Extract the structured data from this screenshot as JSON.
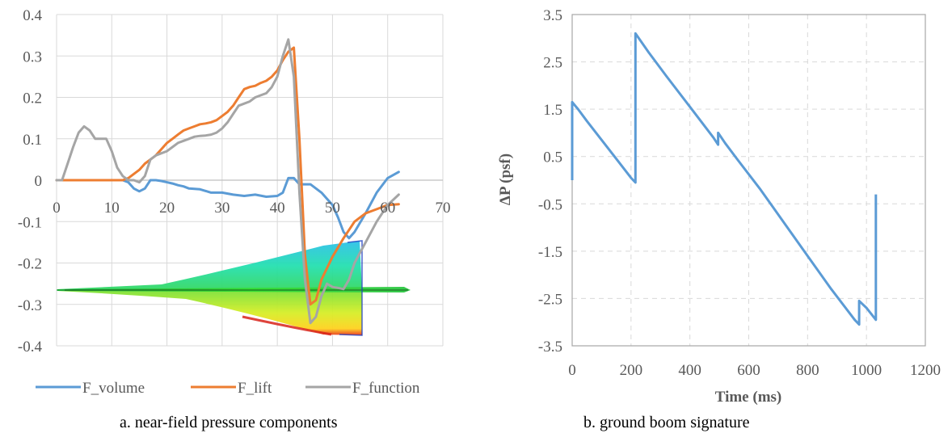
{
  "captions": {
    "a": "a. near-field pressure components",
    "b": "b. ground boom signature"
  },
  "chart_data": [
    {
      "id": "a",
      "type": "line",
      "title": "",
      "xlabel": "",
      "ylabel": "",
      "xlim": [
        0,
        70
      ],
      "ylim": [
        -0.4,
        0.4
      ],
      "xticks": [
        0,
        10,
        20,
        30,
        40,
        50,
        60,
        70
      ],
      "yticks": [
        0.4,
        0.3,
        0.2,
        0.1,
        0,
        -0.1,
        -0.2,
        -0.3,
        -0.4
      ],
      "ytick_labels": [
        "0.4",
        "0.3",
        "0.2",
        "0.1",
        "0",
        "-0.1",
        "-0.2",
        "-0.3",
        "-0.4"
      ],
      "grid": "vertical and horizontal",
      "legend_position": "bottom",
      "inset": "aircraft pressure contour planform",
      "series": [
        {
          "name": "F_volume",
          "color": "#5b9bd5",
          "points": [
            [
              0,
              0
            ],
            [
              1,
              0
            ],
            [
              2,
              0
            ],
            [
              4,
              0
            ],
            [
              6,
              0
            ],
            [
              8,
              0
            ],
            [
              10,
              0
            ],
            [
              12,
              0
            ],
            [
              13,
              -0.005
            ],
            [
              14,
              -0.02
            ],
            [
              15,
              -0.027
            ],
            [
              16,
              -0.02
            ],
            [
              17,
              0
            ],
            [
              18,
              0
            ],
            [
              19,
              -0.002
            ],
            [
              20,
              -0.005
            ],
            [
              21,
              -0.008
            ],
            [
              22,
              -0.012
            ],
            [
              23,
              -0.015
            ],
            [
              24,
              -0.02
            ],
            [
              26,
              -0.022
            ],
            [
              28,
              -0.03
            ],
            [
              30,
              -0.03
            ],
            [
              32,
              -0.035
            ],
            [
              34,
              -0.038
            ],
            [
              36,
              -0.035
            ],
            [
              38,
              -0.04
            ],
            [
              40,
              -0.038
            ],
            [
              41,
              -0.03
            ],
            [
              42,
              0.005
            ],
            [
              43,
              0.005
            ],
            [
              44,
              -0.01
            ],
            [
              46,
              -0.01
            ],
            [
              48,
              -0.03
            ],
            [
              50,
              -0.06
            ],
            [
              51,
              -0.09
            ],
            [
              52,
              -0.125
            ],
            [
              53,
              -0.14
            ],
            [
              54,
              -0.125
            ],
            [
              56,
              -0.08
            ],
            [
              58,
              -0.03
            ],
            [
              60,
              0.005
            ],
            [
              62,
              0.02
            ]
          ]
        },
        {
          "name": "F_lift",
          "color": "#ed7d31",
          "points": [
            [
              0,
              0
            ],
            [
              1,
              0
            ],
            [
              2,
              0
            ],
            [
              4,
              0
            ],
            [
              6,
              0
            ],
            [
              8,
              0
            ],
            [
              10,
              0
            ],
            [
              12,
              0
            ],
            [
              13,
              0.005
            ],
            [
              14,
              0.015
            ],
            [
              15,
              0.025
            ],
            [
              16,
              0.04
            ],
            [
              17,
              0.05
            ],
            [
              18,
              0.06
            ],
            [
              19,
              0.075
            ],
            [
              20,
              0.09
            ],
            [
              21,
              0.1
            ],
            [
              22,
              0.11
            ],
            [
              23,
              0.12
            ],
            [
              24,
              0.125
            ],
            [
              25,
              0.13
            ],
            [
              26,
              0.135
            ],
            [
              27,
              0.137
            ],
            [
              28,
              0.14
            ],
            [
              29,
              0.145
            ],
            [
              30,
              0.155
            ],
            [
              31,
              0.165
            ],
            [
              32,
              0.18
            ],
            [
              33,
              0.2
            ],
            [
              34,
              0.22
            ],
            [
              35,
              0.225
            ],
            [
              36,
              0.228
            ],
            [
              37,
              0.235
            ],
            [
              38,
              0.24
            ],
            [
              39,
              0.25
            ],
            [
              40,
              0.265
            ],
            [
              41,
              0.29
            ],
            [
              42,
              0.31
            ],
            [
              43,
              0.32
            ],
            [
              44,
              0.1
            ],
            [
              45,
              -0.18
            ],
            [
              46,
              -0.3
            ],
            [
              47,
              -0.29
            ],
            [
              48,
              -0.24
            ],
            [
              50,
              -0.185
            ],
            [
              52,
              -0.14
            ],
            [
              54,
              -0.1
            ],
            [
              56,
              -0.08
            ],
            [
              58,
              -0.07
            ],
            [
              60,
              -0.06
            ],
            [
              62,
              -0.058
            ]
          ]
        },
        {
          "name": "F_function",
          "color": "#a5a5a5",
          "points": [
            [
              0,
              0
            ],
            [
              1,
              0
            ],
            [
              2,
              0.04
            ],
            [
              3,
              0.08
            ],
            [
              4,
              0.115
            ],
            [
              5,
              0.13
            ],
            [
              6,
              0.12
            ],
            [
              7,
              0.1
            ],
            [
              8,
              0.1
            ],
            [
              9,
              0.1
            ],
            [
              10,
              0.07
            ],
            [
              11,
              0.03
            ],
            [
              12,
              0.01
            ],
            [
              13,
              0
            ],
            [
              14,
              0
            ],
            [
              15,
              -0.005
            ],
            [
              16,
              0.01
            ],
            [
              17,
              0.05
            ],
            [
              18,
              0.06
            ],
            [
              19,
              0.065
            ],
            [
              20,
              0.07
            ],
            [
              21,
              0.08
            ],
            [
              22,
              0.09
            ],
            [
              23,
              0.095
            ],
            [
              24,
              0.1
            ],
            [
              25,
              0.105
            ],
            [
              26,
              0.107
            ],
            [
              27,
              0.108
            ],
            [
              28,
              0.11
            ],
            [
              29,
              0.115
            ],
            [
              30,
              0.125
            ],
            [
              31,
              0.14
            ],
            [
              32,
              0.16
            ],
            [
              33,
              0.18
            ],
            [
              34,
              0.185
            ],
            [
              35,
              0.19
            ],
            [
              36,
              0.2
            ],
            [
              37,
              0.205
            ],
            [
              38,
              0.21
            ],
            [
              39,
              0.225
            ],
            [
              40,
              0.25
            ],
            [
              41,
              0.3
            ],
            [
              42,
              0.34
            ],
            [
              43,
              0.25
            ],
            [
              44,
              -0.03
            ],
            [
              45,
              -0.24
            ],
            [
              46,
              -0.345
            ],
            [
              47,
              -0.33
            ],
            [
              48,
              -0.28
            ],
            [
              49,
              -0.25
            ],
            [
              50,
              -0.258
            ],
            [
              51,
              -0.26
            ],
            [
              52,
              -0.263
            ],
            [
              53,
              -0.24
            ],
            [
              54,
              -0.2
            ],
            [
              56,
              -0.15
            ],
            [
              58,
              -0.1
            ],
            [
              60,
              -0.06
            ],
            [
              62,
              -0.035
            ]
          ]
        }
      ]
    },
    {
      "id": "b",
      "type": "line",
      "title": "",
      "xlabel": "Time (ms)",
      "ylabel": "ΔP (psf)",
      "xlim": [
        0,
        1200
      ],
      "ylim": [
        -3.5,
        3.5
      ],
      "xticks": [
        0,
        200,
        400,
        600,
        800,
        1000,
        1200
      ],
      "yticks": [
        3.5,
        2.5,
        1.5,
        0.5,
        -0.5,
        -1.5,
        -2.5,
        -3.5
      ],
      "ytick_labels": [
        "3.5",
        "2.5",
        "1.5",
        "0.5",
        "-0.5",
        "-1.5",
        "-2.5",
        "-3.5"
      ],
      "grid": "dashed, both axes",
      "legend_position": "none",
      "series": [
        {
          "color": "#5b9bd5",
          "points": [
            [
              0,
              0
            ],
            [
              0,
              1.65
            ],
            [
              20,
              1.5
            ],
            [
              50,
              1.25
            ],
            [
              100,
              0.85
            ],
            [
              150,
              0.45
            ],
            [
              200,
              0.05
            ],
            [
              215,
              -0.05
            ],
            [
              215,
              3.1
            ],
            [
              260,
              2.7
            ],
            [
              320,
              2.2
            ],
            [
              400,
              1.55
            ],
            [
              480,
              0.9
            ],
            [
              496,
              0.75
            ],
            [
              496,
              1.0
            ],
            [
              520,
              0.78
            ],
            [
              560,
              0.45
            ],
            [
              640,
              -0.2
            ],
            [
              720,
              -0.9
            ],
            [
              800,
              -1.6
            ],
            [
              880,
              -2.3
            ],
            [
              960,
              -2.95
            ],
            [
              975,
              -3.05
            ],
            [
              975,
              -2.55
            ],
            [
              1000,
              -2.7
            ],
            [
              1032,
              -2.95
            ],
            [
              1032,
              -0.3
            ]
          ]
        }
      ]
    }
  ]
}
